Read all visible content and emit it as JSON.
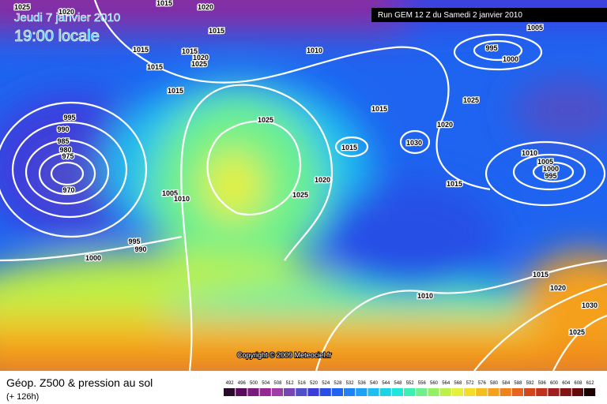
{
  "header": {
    "date": "Jeudi 7 janvier 2010",
    "time": "19:00 locale",
    "run": "Run GEM 12 Z du Samedi 2 janvier 2010"
  },
  "copyright": "Copyright © 2009 Meteociel.fr",
  "footer": {
    "title": "Géop. Z500 & pression au sol",
    "lead": "(+ 126h)"
  },
  "isobar_labels": [
    1025,
    1015,
    1020,
    1020,
    1015,
    1015,
    1015,
    1020,
    1025,
    1015,
    1015,
    1010,
    995,
    1000,
    1005,
    1025,
    1015,
    1020,
    1025,
    1015,
    1030,
    995,
    990,
    985,
    980,
    975,
    970,
    1005,
    1010,
    1025,
    1020,
    1015,
    1010,
    1005,
    1000,
    995,
    995,
    990,
    1000,
    1010,
    1015,
    1020,
    1030,
    1025
  ],
  "legend": {
    "values": [
      492,
      496,
      500,
      504,
      508,
      512,
      516,
      520,
      524,
      528,
      532,
      536,
      540,
      544,
      548,
      552,
      556,
      560,
      564,
      568,
      572,
      576,
      580,
      584,
      588,
      592,
      596,
      600,
      604,
      608,
      612
    ],
    "colors": [
      "#2a0a2a",
      "#5a0a5a",
      "#7a1a7a",
      "#962896",
      "#a03ca8",
      "#7846b4",
      "#5050c8",
      "#3c3cdc",
      "#2850e6",
      "#1e64f0",
      "#1e82f5",
      "#1ea0f5",
      "#1ebef0",
      "#1ed2e6",
      "#1ee6dc",
      "#3cf0b4",
      "#6ef08c",
      "#96f064",
      "#bef046",
      "#e6f03c",
      "#f5dc28",
      "#f5be1e",
      "#f5a01e",
      "#f0821e",
      "#e6641e",
      "#d2461e",
      "#be321e",
      "#a01e1e",
      "#821414",
      "#640a0a",
      "#1e0000"
    ]
  }
}
